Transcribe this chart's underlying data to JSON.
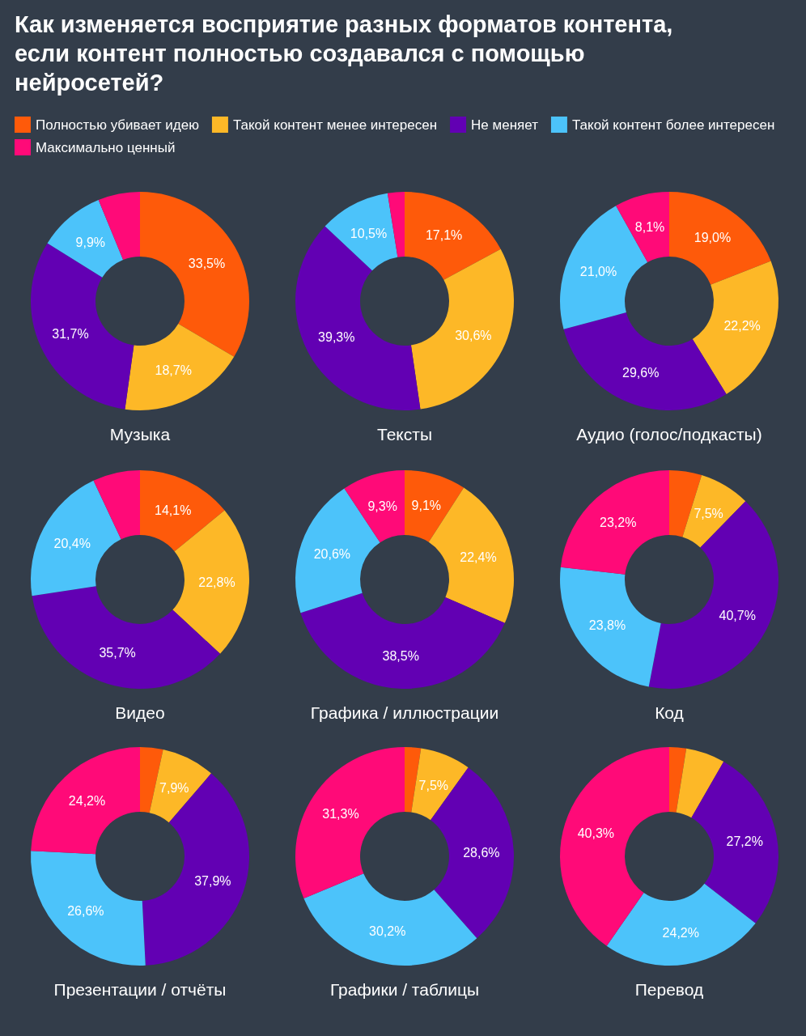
{
  "chart_data": [
    {
      "type": "donut",
      "title": "Музыка",
      "annotations": [
        "Как изменяется восприятие разных форматов контента, если контент полностью создавался с помощью нейросетей?"
      ],
      "legend": "top",
      "categories": [
        "Полностью убивает идею",
        "Такой контент менее интересен",
        "Не меняет",
        "Такой контент более интересен",
        "Максимально ценный"
      ],
      "colors": [
        "#fe5a0a",
        "#fdb827",
        "#6200b3",
        "#4cc3fa",
        "#ff0a78"
      ],
      "values": [
        33.5,
        18.7,
        31.7,
        9.9,
        6.2
      ],
      "value_labels": [
        "33,5%",
        "18,7%",
        "31,7%",
        "9,9%",
        null
      ]
    },
    {
      "type": "donut",
      "title": "Тексты",
      "categories": [
        null,
        null,
        null,
        null,
        null
      ],
      "colors": [
        "#fe5a0a",
        "#fdb827",
        "#6200b3",
        "#4cc3fa",
        "#ff0a78"
      ],
      "values": [
        17.1,
        30.6,
        39.3,
        10.5,
        2.5
      ],
      "value_labels": [
        "17,1%",
        "30,6%",
        "39,3%",
        "10,5%",
        null
      ]
    },
    {
      "type": "donut",
      "title": "Аудио (голос/подкасты)",
      "categories": [
        null,
        null,
        null,
        null,
        null
      ],
      "colors": [
        "#fe5a0a",
        "#fdb827",
        "#6200b3",
        "#4cc3fa",
        "#ff0a78"
      ],
      "values": [
        19.0,
        22.2,
        29.6,
        21.0,
        8.1
      ],
      "value_labels": [
        "19,0%",
        "22,2%",
        "29,6%",
        "21,0%",
        "8,1%"
      ]
    },
    {
      "type": "donut",
      "title": "Видео",
      "categories": [
        null,
        null,
        null,
        null,
        null
      ],
      "colors": [
        "#fe5a0a",
        "#fdb827",
        "#6200b3",
        "#4cc3fa",
        "#ff0a78"
      ],
      "values": [
        14.1,
        22.8,
        35.7,
        20.4,
        7.0
      ],
      "value_labels": [
        "14,1%",
        "22,8%",
        "35,7%",
        "20,4%",
        null
      ]
    },
    {
      "type": "donut",
      "title": "Графика / иллюстрации",
      "categories": [
        null,
        null,
        null,
        null,
        null
      ],
      "colors": [
        "#fe5a0a",
        "#fdb827",
        "#6200b3",
        "#4cc3fa",
        "#ff0a78"
      ],
      "values": [
        9.1,
        22.4,
        38.5,
        20.6,
        9.3
      ],
      "value_labels": [
        "9,1%",
        "22,4%",
        "38,5%",
        "20,6%",
        "9,3%"
      ]
    },
    {
      "type": "donut",
      "title": "Код",
      "categories": [
        null,
        null,
        null,
        null,
        null
      ],
      "colors": [
        "#fe5a0a",
        "#fdb827",
        "#6200b3",
        "#4cc3fa",
        "#ff0a78"
      ],
      "values": [
        4.8,
        7.5,
        40.7,
        23.8,
        23.2
      ],
      "value_labels": [
        null,
        "7,5%",
        "40,7%",
        "23,8%",
        "23,2%"
      ]
    },
    {
      "type": "donut",
      "title": "Презентации / отчёты",
      "categories": [
        null,
        null,
        null,
        null,
        null
      ],
      "colors": [
        "#fe5a0a",
        "#fdb827",
        "#6200b3",
        "#4cc3fa",
        "#ff0a78"
      ],
      "values": [
        3.4,
        7.9,
        37.9,
        26.6,
        24.2
      ],
      "value_labels": [
        null,
        "7,9%",
        "37,9%",
        "26,6%",
        "24,2%"
      ]
    },
    {
      "type": "donut",
      "title": "Графики / таблицы",
      "categories": [
        null,
        null,
        null,
        null,
        null
      ],
      "colors": [
        "#fe5a0a",
        "#fdb827",
        "#6200b3",
        "#4cc3fa",
        "#ff0a78"
      ],
      "values": [
        2.4,
        7.5,
        28.6,
        30.2,
        31.3
      ],
      "value_labels": [
        null,
        "7,5%",
        "28,6%",
        "30,2%",
        "31,3%"
      ]
    },
    {
      "type": "donut",
      "title": "Перевод",
      "categories": [
        null,
        null,
        null,
        null,
        null
      ],
      "colors": [
        "#fe5a0a",
        "#fdb827",
        "#6200b3",
        "#4cc3fa",
        "#ff0a78"
      ],
      "values": [
        2.5,
        5.8,
        27.2,
        24.2,
        40.3
      ],
      "value_labels": [
        null,
        null,
        "27,2%",
        "24,2%",
        "40,3%"
      ]
    }
  ]
}
